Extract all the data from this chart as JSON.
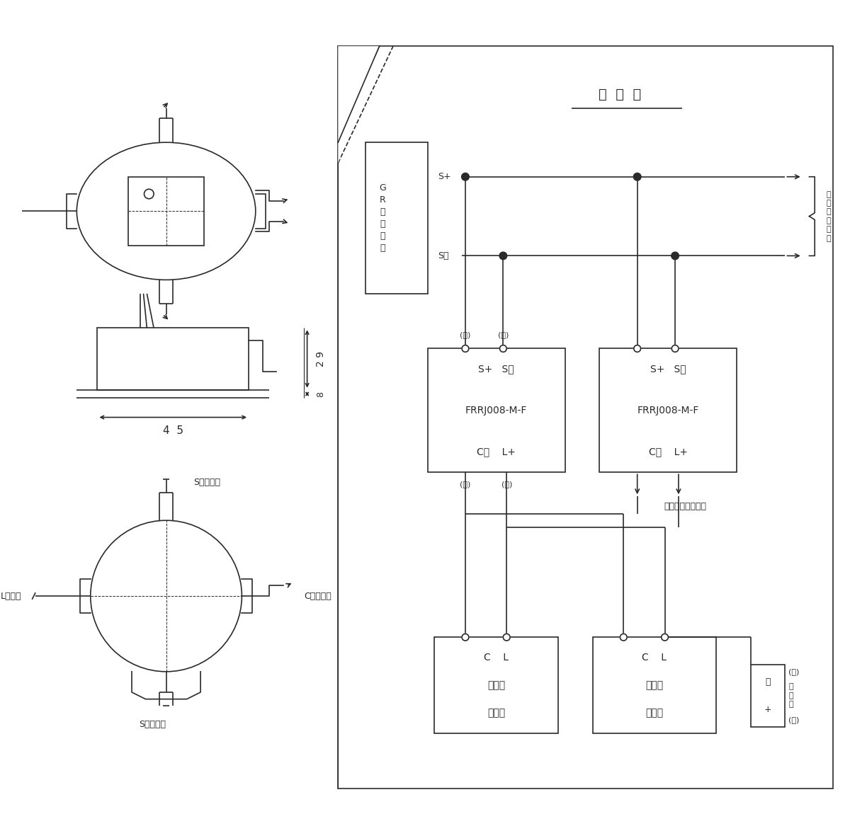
{
  "line_color": "#2a2a2a",
  "lw": 1.0,
  "title": "接  続  図",
  "gr_label": "G\nR\n型\n受\n信\n機",
  "sp_text": "S+",
  "sm_text": "S－",
  "module_text_top1": "S+   S－",
  "module_text_mid1": "FRRJ008-M-F",
  "module_text_bot1": "C－    L+",
  "sensor_text1": "C    L",
  "sensor_text2": "一般型",
  "sensor_text3": "感知器",
  "orange": "(橙)",
  "black": "(黒)",
  "blue": "(青)",
  "red": "(赤)",
  "next": "次\nの\n中\n継\n器\nへ",
  "sensor_terminal": "感知器及び終端器",
  "terminal": "終\n端\n器",
  "minus": "－",
  "plus": "+",
  "blue2": "(青)",
  "red2": "(赤)",
  "sp_orange": "S＋（橙）",
  "sm_black": "S－（黒）",
  "cm_blue": "C－（青）",
  "l_red": "L（赤）",
  "dim45": "4  5",
  "dim29": "2 9",
  "dim8": "8"
}
